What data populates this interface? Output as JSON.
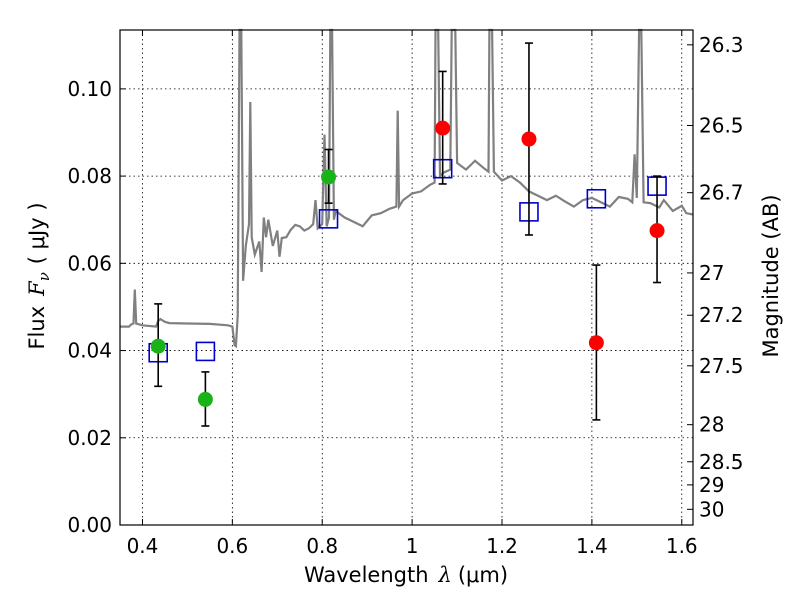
{
  "chart_data": {
    "type": "scatter",
    "xlabel_text": "Wavelength",
    "xlabel_symbol": "λ",
    "xlabel_unit": "(μm)",
    "ylabel_text": "Flux",
    "ylabel_symbol": "F",
    "ylabel_subscript": "ν",
    "ylabel_unit": "( μJy )",
    "ylabel_right": "Magnitude (AB)",
    "xlim": [
      0.35,
      1.625
    ],
    "ylim": [
      0.0,
      0.1135
    ],
    "xticks": [
      0.4,
      0.6,
      0.8,
      1.0,
      1.2,
      1.4,
      1.6
    ],
    "xtick_labels": [
      "0.4",
      "0.6",
      "0.8",
      "1",
      "1.2",
      "1.4",
      "1.6"
    ],
    "yticks": [
      0.0,
      0.02,
      0.04,
      0.06,
      0.08,
      0.1
    ],
    "ytick_labels": [
      "0.00",
      "0.02",
      "0.04",
      "0.06",
      "0.08",
      "0.10"
    ],
    "right_ticks": [
      {
        "label": "26.3",
        "flux": 0.1101
      },
      {
        "label": "26.5",
        "flux": 0.0916
      },
      {
        "label": "26.7",
        "flux": 0.0762
      },
      {
        "label": "27",
        "flux": 0.0578
      },
      {
        "label": "27.2",
        "flux": 0.0481
      },
      {
        "label": "27.5",
        "flux": 0.0365
      },
      {
        "label": "28",
        "flux": 0.023
      },
      {
        "label": "28.5",
        "flux": 0.0145
      },
      {
        "label": "29",
        "flux": 0.0092
      },
      {
        "label": "30",
        "flux": 0.0036
      }
    ],
    "grid": true,
    "colors": {
      "spectrum": "#808080",
      "green": "#19b219",
      "red": "#ff0000",
      "model": "#0000cc",
      "errorbar": "#000000",
      "grid": "#000000"
    },
    "series": [
      {
        "name": "green-points",
        "marker": "circle",
        "points": [
          {
            "x": 0.435,
            "y": 0.041,
            "err_lo": 0.0092,
            "err_hi": 0.0097
          },
          {
            "x": 0.54,
            "y": 0.0288,
            "err_lo": 0.0061,
            "err_hi": 0.0063
          },
          {
            "x": 0.814,
            "y": 0.0798,
            "err_lo": 0.006,
            "err_hi": 0.0063
          }
        ]
      },
      {
        "name": "red-points",
        "marker": "circle",
        "points": [
          {
            "x": 1.068,
            "y": 0.091,
            "err_lo": 0.0128,
            "err_hi": 0.013
          },
          {
            "x": 1.26,
            "y": 0.0885,
            "err_lo": 0.022,
            "err_hi": 0.022
          },
          {
            "x": 1.41,
            "y": 0.0418,
            "err_lo": 0.0177,
            "err_hi": 0.0178
          },
          {
            "x": 1.545,
            "y": 0.0675,
            "err_lo": 0.0119,
            "err_hi": 0.0125
          }
        ]
      },
      {
        "name": "model-points",
        "marker": "open-square",
        "points": [
          {
            "x": 0.435,
            "y": 0.0395
          },
          {
            "x": 0.54,
            "y": 0.0398
          },
          {
            "x": 0.814,
            "y": 0.0702
          },
          {
            "x": 1.068,
            "y": 0.0817
          },
          {
            "x": 1.26,
            "y": 0.0718
          },
          {
            "x": 1.41,
            "y": 0.0748
          },
          {
            "x": 1.545,
            "y": 0.0777
          }
        ]
      }
    ],
    "spectrum": [
      [
        0.35,
        0.0455
      ],
      [
        0.37,
        0.0455
      ],
      [
        0.375,
        0.046
      ],
      [
        0.38,
        0.0462
      ],
      [
        0.383,
        0.054
      ],
      [
        0.386,
        0.0462
      ],
      [
        0.4,
        0.0458
      ],
      [
        0.43,
        0.0455
      ],
      [
        0.435,
        0.0468
      ],
      [
        0.44,
        0.0472
      ],
      [
        0.45,
        0.0466
      ],
      [
        0.46,
        0.0463
      ],
      [
        0.5,
        0.0462
      ],
      [
        0.55,
        0.0461
      ],
      [
        0.59,
        0.0458
      ],
      [
        0.6,
        0.0455
      ],
      [
        0.605,
        0.0412
      ],
      [
        0.608,
        0.041
      ],
      [
        0.612,
        0.048
      ],
      [
        0.616,
        0.1135
      ],
      [
        0.62,
        0.1135
      ],
      [
        0.624,
        0.056
      ],
      [
        0.63,
        0.064
      ],
      [
        0.637,
        0.069
      ],
      [
        0.64,
        0.097
      ],
      [
        0.643,
        0.066
      ],
      [
        0.65,
        0.062
      ],
      [
        0.66,
        0.065
      ],
      [
        0.665,
        0.058
      ],
      [
        0.67,
        0.0705
      ],
      [
        0.675,
        0.066
      ],
      [
        0.68,
        0.07
      ],
      [
        0.69,
        0.064
      ],
      [
        0.7,
        0.0675
      ],
      [
        0.705,
        0.0615
      ],
      [
        0.71,
        0.0658
      ],
      [
        0.72,
        0.066
      ],
      [
        0.73,
        0.0677
      ],
      [
        0.74,
        0.0688
      ],
      [
        0.75,
        0.0685
      ],
      [
        0.76,
        0.0675
      ],
      [
        0.77,
        0.068
      ],
      [
        0.78,
        0.069
      ],
      [
        0.785,
        0.0745
      ],
      [
        0.79,
        0.068
      ],
      [
        0.8,
        0.069
      ],
      [
        0.805,
        0.0895
      ],
      [
        0.81,
        0.0685
      ],
      [
        0.815,
        0.0705
      ],
      [
        0.818,
        0.1135
      ],
      [
        0.822,
        0.1135
      ],
      [
        0.826,
        0.07
      ],
      [
        0.83,
        0.072
      ],
      [
        0.85,
        0.0705
      ],
      [
        0.87,
        0.0695
      ],
      [
        0.89,
        0.0685
      ],
      [
        0.91,
        0.071
      ],
      [
        0.93,
        0.0715
      ],
      [
        0.95,
        0.0725
      ],
      [
        0.965,
        0.073
      ],
      [
        0.968,
        0.095
      ],
      [
        0.971,
        0.073
      ],
      [
        0.98,
        0.0745
      ],
      [
        1.0,
        0.076
      ],
      [
        1.02,
        0.0765
      ],
      [
        1.04,
        0.078
      ],
      [
        1.05,
        0.0785
      ],
      [
        1.052,
        0.1135
      ],
      [
        1.058,
        0.1135
      ],
      [
        1.062,
        0.08
      ],
      [
        1.07,
        0.0808
      ],
      [
        1.085,
        0.0815
      ],
      [
        1.088,
        0.1135
      ],
      [
        1.096,
        0.1135
      ],
      [
        1.1,
        0.083
      ],
      [
        1.12,
        0.0815
      ],
      [
        1.135,
        0.083
      ],
      [
        1.14,
        0.0835
      ],
      [
        1.16,
        0.0818
      ],
      [
        1.17,
        0.081
      ],
      [
        1.172,
        0.1135
      ],
      [
        1.178,
        0.1135
      ],
      [
        1.182,
        0.081
      ],
      [
        1.2,
        0.079
      ],
      [
        1.22,
        0.08
      ],
      [
        1.24,
        0.0785
      ],
      [
        1.26,
        0.0765
      ],
      [
        1.28,
        0.0755
      ],
      [
        1.3,
        0.0745
      ],
      [
        1.32,
        0.0755
      ],
      [
        1.34,
        0.0742
      ],
      [
        1.36,
        0.073
      ],
      [
        1.38,
        0.0745
      ],
      [
        1.4,
        0.075
      ],
      [
        1.42,
        0.074
      ],
      [
        1.44,
        0.073
      ],
      [
        1.46,
        0.0752
      ],
      [
        1.48,
        0.0748
      ],
      [
        1.49,
        0.074
      ],
      [
        1.495,
        0.085
      ],
      [
        1.5,
        0.075
      ],
      [
        1.505,
        0.1135
      ],
      [
        1.51,
        0.1135
      ],
      [
        1.515,
        0.074
      ],
      [
        1.53,
        0.0738
      ],
      [
        1.55,
        0.0728
      ],
      [
        1.56,
        0.0745
      ],
      [
        1.58,
        0.072
      ],
      [
        1.6,
        0.0732
      ],
      [
        1.61,
        0.0715
      ],
      [
        1.625,
        0.0712
      ]
    ]
  }
}
